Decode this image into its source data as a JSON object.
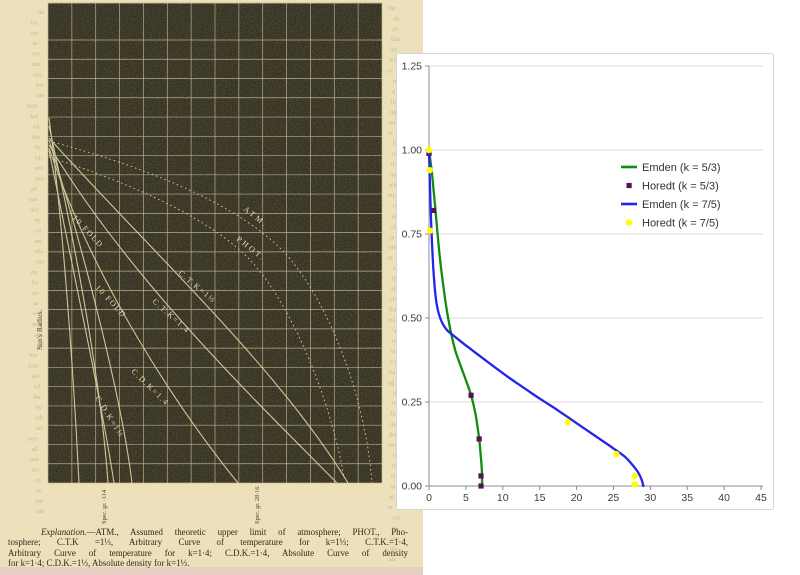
{
  "left_page": {
    "side_label": "Sun's Radius.",
    "curve_labels": [
      "10 FOLD",
      "10 FOLD",
      "ATM.",
      "PHOT.",
      "C.T.K=1⅓",
      "C.T.K=1.4",
      "C.D.K=1.4",
      "C.D.K=1⅓"
    ],
    "bottom_labels": [
      "Spec. gr. ·114",
      "Spec. gr. 28·16"
    ],
    "caption_lead": "Explanation.",
    "caption_lines": [
      "—ATM., Assumed theoretic upper limit of atmosphere; PHOT., Pho-",
      "tosphere; C.T.K =1⅓, Arbitrary Curve of temperature for k=1⅓; C.T.K.=1·4,",
      "Arbitrary Curve of temperature for k=1·4; C.D.K.=1·4, Absolute Curve of density",
      "for k=1·4; C.D.K.=1⅓, Absolute density for k=1⅓."
    ],
    "margin_fragments_left": [
      "on",
      "lin",
      "cre",
      "at-",
      "ver",
      "mic",
      "aris",
      "sol",
      "ine",
      "tion",
      "lad",
      "ed",
      "the",
      "by",
      "ish",
      "ore",
      "nce",
      "all",
      "one",
      "acc",
      "ry",
      "so",
      "ent",
      "ula",
      "ons"
    ],
    "margin_fragments_right": [
      "the",
      "als",
      "ch",
      "that",
      "ize",
      "wils",
      "re",
      "nd",
      "a r",
      "ha",
      "ng",
      "ou",
      "rc",
      "ba",
      "os",
      "tha",
      "more",
      "ich",
      "ter",
      "on",
      "as",
      "ol",
      "is",
      "ere",
      "nt",
      "ace"
    ],
    "colors": {
      "paper": "#eee3bc",
      "plate": "#201d10",
      "grid": "#c7ba8b",
      "curve": "#d9cea2",
      "label": "#e9deb2",
      "ink": "#32291a",
      "bleed": "#a6935f",
      "bottom_strip": "#e7d0c3"
    }
  },
  "chart_data": {
    "type": "line",
    "title": "",
    "xlabel": "",
    "ylabel": "",
    "xlim": [
      0,
      45
    ],
    "ylim": [
      0,
      1.25
    ],
    "x_ticks": [
      "0",
      "5",
      "10",
      "15",
      "20",
      "25",
      "30",
      "35",
      "40",
      "45"
    ],
    "x_tick_values": [
      0,
      5,
      10,
      15,
      20,
      25,
      30,
      35,
      40,
      45
    ],
    "y_ticks": [
      "0.00",
      "0.25",
      "0.50",
      "0.75",
      "1.00",
      "1.25"
    ],
    "y_tick_values": [
      0,
      0.25,
      0.5,
      0.75,
      1.0,
      1.25
    ],
    "grid": "horizontal",
    "legend_position": "right-upper",
    "series": [
      {
        "name": "Emden (k = 5/3)",
        "kind": "line",
        "marker": "none",
        "color": "#108c10",
        "points": [
          [
            0,
            1.0
          ],
          [
            0.4,
            0.93
          ],
          [
            0.8,
            0.84
          ],
          [
            1.2,
            0.74
          ],
          [
            1.6,
            0.655
          ],
          [
            2.0,
            0.585
          ],
          [
            2.4,
            0.525
          ],
          [
            2.8,
            0.475
          ],
          [
            3.2,
            0.435
          ],
          [
            3.6,
            0.4
          ],
          [
            4.0,
            0.375
          ],
          [
            4.5,
            0.345
          ],
          [
            5.0,
            0.315
          ],
          [
            5.7,
            0.27
          ],
          [
            6.3,
            0.215
          ],
          [
            6.8,
            0.14
          ],
          [
            7.0,
            0.095
          ],
          [
            7.15,
            0.05
          ],
          [
            7.2,
            0.0
          ]
        ]
      },
      {
        "name": "Horedt (k = 5/3)",
        "kind": "scatter",
        "marker": "square",
        "color": "#5a0f5a",
        "points": [
          [
            0,
            0.99
          ],
          [
            0.6,
            0.82
          ],
          [
            5.7,
            0.27
          ],
          [
            6.8,
            0.14
          ],
          [
            7.05,
            0.03
          ],
          [
            7.05,
            0.0
          ]
        ]
      },
      {
        "name": "Emden (k = 7/5)",
        "kind": "line",
        "marker": "none",
        "color": "#2323ee",
        "points": [
          [
            0,
            1.0
          ],
          [
            0.1,
            0.92
          ],
          [
            0.2,
            0.84
          ],
          [
            0.35,
            0.75
          ],
          [
            0.5,
            0.68
          ],
          [
            0.7,
            0.61
          ],
          [
            0.95,
            0.555
          ],
          [
            1.3,
            0.515
          ],
          [
            1.8,
            0.485
          ],
          [
            2.4,
            0.465
          ],
          [
            3.2,
            0.45
          ],
          [
            4.2,
            0.432
          ],
          [
            5.5,
            0.41
          ],
          [
            7,
            0.385
          ],
          [
            9,
            0.352
          ],
          [
            11,
            0.32
          ],
          [
            13,
            0.29
          ],
          [
            15,
            0.26
          ],
          [
            17,
            0.232
          ],
          [
            19,
            0.202
          ],
          [
            21,
            0.172
          ],
          [
            23,
            0.142
          ],
          [
            25,
            0.112
          ],
          [
            26.5,
            0.088
          ],
          [
            27.5,
            0.065
          ],
          [
            28.3,
            0.042
          ],
          [
            28.8,
            0.02
          ],
          [
            29.05,
            0.0
          ]
        ]
      },
      {
        "name": "Horedt (k = 7/5)",
        "kind": "scatter",
        "marker": "circle",
        "color": "#ffff00",
        "points": [
          [
            0,
            1.0
          ],
          [
            0.1,
            0.94
          ],
          [
            0.15,
            0.76
          ],
          [
            18.8,
            0.19
          ],
          [
            25.4,
            0.095
          ],
          [
            27.9,
            0.03
          ],
          [
            27.9,
            0.005
          ]
        ]
      }
    ],
    "colors": {
      "axis": "#8c8c8c",
      "grid": "#d9d9d9",
      "tick_text": "#3c3c3c",
      "legend_text": "#333333",
      "panel_border": "#d6d6d6"
    }
  }
}
